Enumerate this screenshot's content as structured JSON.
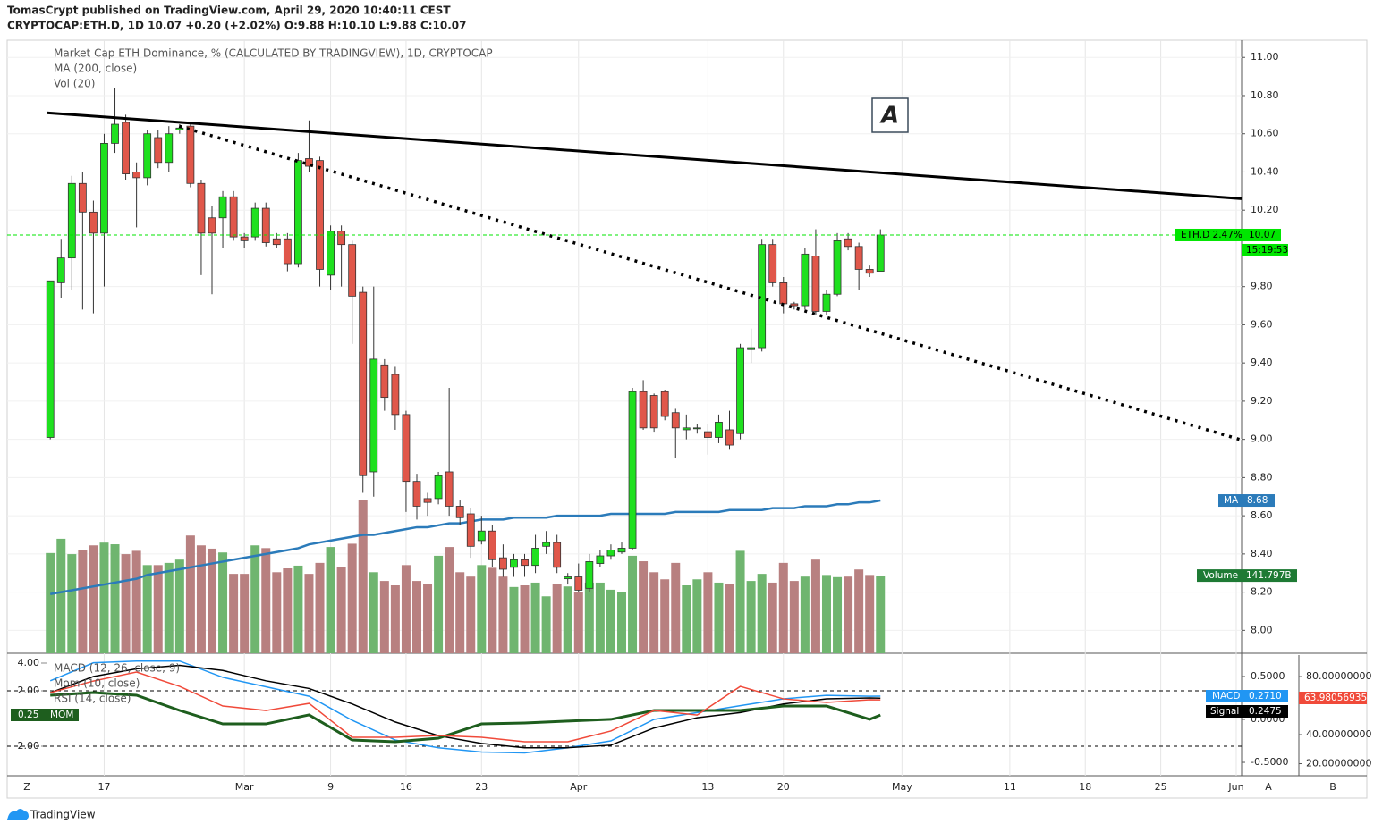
{
  "header": {
    "publisher": "TomasCrypt published on TradingView.com, April 29, 2020 10:40:11 CEST",
    "symbol_line": "CRYPTOCAP:ETH.D, 1D  10.07  +0.20 (+2.02%)  O:9.88  H:10.10  L:9.88  C:10.07"
  },
  "footer": {
    "brand": "TradingView",
    "corner_left": "Z",
    "button_a": "A",
    "button_b": "B"
  },
  "chart_data": [
    {
      "type": "candlestick",
      "title": "Market Cap ETH Dominance, % (CALCULATED BY TRADINGVIEW), 1D, CRYPTOCAP",
      "legend": [
        "MA (200, close)",
        "Vol (20)"
      ],
      "annotation": "A",
      "xlim": [
        -4,
        110.5
      ],
      "xticks": [
        {
          "value": 5,
          "label": "17"
        },
        {
          "value": 18,
          "label": "Mar"
        },
        {
          "value": 26,
          "label": "9"
        },
        {
          "value": 33,
          "label": "16"
        },
        {
          "value": 40,
          "label": "23"
        },
        {
          "value": 49,
          "label": "Apr"
        },
        {
          "value": 61,
          "label": "13"
        },
        {
          "value": 68,
          "label": "20"
        },
        {
          "value": 79,
          "label": "May"
        },
        {
          "value": 89,
          "label": "11"
        },
        {
          "value": 96,
          "label": "18"
        },
        {
          "value": 103,
          "label": "25"
        },
        {
          "value": 110,
          "label": "Jun"
        }
      ],
      "ylim": [
        7.88,
        11.09
      ],
      "yticks": [
        {
          "value": 11,
          "label": "11.00"
        },
        {
          "value": 10.8,
          "label": "10.80"
        },
        {
          "value": 10.6,
          "label": "10.60"
        },
        {
          "value": 10.4,
          "label": "10.40"
        },
        {
          "value": 10.2,
          "label": "10.20"
        },
        {
          "value": 9.8,
          "label": "9.80"
        },
        {
          "value": 9.6,
          "label": "9.60"
        },
        {
          "value": 9.4,
          "label": "9.40"
        },
        {
          "value": 9.2,
          "label": "9.20"
        },
        {
          "value": 9,
          "label": "9.00"
        },
        {
          "value": 8.8,
          "label": "8.80"
        },
        {
          "value": 8.6,
          "label": "8.60"
        },
        {
          "value": 8.4,
          "label": "8.40"
        },
        {
          "value": 8.2,
          "label": "8.20"
        },
        {
          "value": 8,
          "label": "8.00"
        }
      ],
      "grid": true,
      "up_color": "#1fe01f",
      "down_color": "#e0574a",
      "open": [
        9.01,
        9.82,
        9.95,
        10.34,
        10.19,
        10.08,
        10.55,
        10.66,
        10.4,
        10.37,
        10.58,
        10.45,
        10.62,
        10.64,
        10.34,
        10.16,
        10.16,
        10.27,
        10.06,
        10.06,
        10.21,
        10.05,
        10.05,
        9.92,
        10.47,
        10.46,
        9.86,
        10.09,
        10.02,
        9.77,
        8.83,
        9.39,
        9.34,
        9.13,
        8.78,
        8.69,
        8.69,
        8.83,
        8.65,
        8.61,
        8.47,
        8.52,
        8.38,
        8.33,
        8.37,
        8.34,
        8.44,
        8.46,
        8.27,
        8.28,
        8.22,
        8.35,
        8.39,
        8.41,
        8.43,
        9.25,
        9.23,
        9.25,
        9.14,
        9.05,
        9.06,
        9.04,
        9.01,
        9.05,
        9.03,
        9.47,
        9.48,
        10.02,
        9.82,
        9.71,
        9.7,
        9.96,
        9.67,
        9.76,
        10.05,
        10.01,
        9.89,
        9.88
      ],
      "high": [
        9.83,
        10.05,
        10.38,
        10.4,
        10.25,
        10.6,
        10.84,
        10.7,
        10.45,
        10.62,
        10.62,
        10.64,
        10.65,
        10.65,
        10.36,
        10.22,
        10.3,
        10.3,
        10.08,
        10.24,
        10.24,
        10.08,
        10.08,
        10.5,
        10.67,
        10.48,
        10.12,
        10.12,
        10.04,
        9.8,
        9.8,
        9.42,
        9.38,
        9.15,
        8.82,
        8.72,
        8.83,
        9.27,
        8.68,
        8.64,
        8.6,
        8.55,
        8.45,
        8.4,
        8.4,
        8.5,
        8.52,
        8.5,
        8.3,
        8.35,
        8.4,
        8.42,
        8.45,
        8.46,
        9.27,
        9.31,
        9.24,
        9.26,
        9.16,
        9.13,
        9.08,
        9.08,
        9.13,
        9.15,
        9.5,
        9.58,
        10.05,
        10.05,
        9.85,
        9.72,
        10.0,
        10.1,
        9.78,
        10.08,
        10.08,
        10.03,
        9.91,
        10.1
      ],
      "low": [
        9.0,
        9.74,
        9.78,
        9.68,
        9.66,
        9.8,
        10.5,
        10.36,
        10.11,
        10.33,
        10.42,
        10.4,
        10.6,
        10.32,
        9.86,
        9.76,
        10.0,
        10.04,
        10.0,
        10.04,
        10.01,
        10.0,
        9.88,
        9.9,
        10.4,
        9.8,
        9.78,
        9.8,
        9.5,
        8.72,
        8.7,
        9.15,
        9.05,
        8.62,
        8.58,
        8.6,
        8.66,
        8.6,
        8.55,
        8.38,
        8.45,
        8.33,
        8.28,
        8.28,
        8.28,
        8.3,
        8.4,
        8.3,
        8.24,
        8.2,
        8.2,
        8.33,
        8.37,
        8.4,
        8.42,
        9.05,
        9.04,
        9.1,
        8.9,
        9.0,
        9.03,
        8.92,
        8.98,
        8.95,
        9.0,
        9.4,
        9.46,
        9.8,
        9.66,
        9.68,
        9.68,
        9.65,
        9.65,
        9.75,
        9.99,
        9.78,
        9.85,
        9.88
      ],
      "close": [
        9.83,
        9.95,
        10.34,
        10.19,
        10.08,
        10.55,
        10.65,
        10.39,
        10.37,
        10.6,
        10.45,
        10.6,
        10.63,
        10.34,
        10.08,
        10.08,
        10.27,
        10.06,
        10.04,
        10.21,
        10.03,
        10.02,
        9.92,
        10.46,
        10.43,
        9.89,
        10.09,
        10.02,
        9.75,
        8.81,
        9.42,
        9.22,
        9.13,
        8.78,
        8.65,
        8.67,
        8.81,
        8.65,
        8.59,
        8.44,
        8.52,
        8.37,
        8.32,
        8.37,
        8.34,
        8.43,
        8.46,
        8.33,
        8.28,
        8.21,
        8.36,
        8.39,
        8.42,
        8.43,
        9.25,
        9.06,
        9.06,
        9.12,
        9.06,
        9.06,
        9.06,
        9.01,
        9.09,
        8.97,
        9.48,
        9.48,
        10.02,
        9.82,
        9.71,
        9.7,
        9.97,
        9.67,
        9.76,
        10.04,
        10.01,
        9.89,
        9.87,
        10.07
      ],
      "volume": {
        "name": "Volume",
        "up_color": "#6fb56f",
        "down_color": "#b88080",
        "value_label": "141.797B",
        "label_color": "#1e7a34",
        "values": [
          183,
          209,
          181,
          189,
          197,
          202,
          199,
          181,
          187,
          161,
          161,
          165,
          171,
          215,
          197,
          191,
          184,
          145,
          145,
          197,
          192,
          148,
          155,
          160,
          145,
          165,
          194,
          158,
          200,
          279,
          148,
          132,
          124,
          161,
          132,
          127,
          178,
          194,
          148,
          140,
          161,
          156,
          140,
          121,
          124,
          129,
          104,
          126,
          122,
          112,
          129,
          129,
          116,
          111,
          178,
          168,
          148,
          135,
          165,
          124,
          135,
          148,
          129,
          127,
          187,
          132,
          145,
          129,
          165,
          132,
          140,
          171,
          143,
          139,
          140,
          153,
          143,
          141.797
        ]
      },
      "ma": {
        "name": "MA",
        "color": "#2b7bba",
        "values": [
          8.19,
          8.2,
          8.21,
          8.22,
          8.23,
          8.24,
          8.25,
          8.26,
          8.27,
          8.29,
          8.3,
          8.31,
          8.32,
          8.33,
          8.34,
          8.35,
          8.36,
          8.37,
          8.38,
          8.39,
          8.4,
          8.41,
          8.42,
          8.43,
          8.45,
          8.46,
          8.47,
          8.48,
          8.49,
          8.5,
          8.5,
          8.51,
          8.52,
          8.53,
          8.54,
          8.54,
          8.55,
          8.56,
          8.56,
          8.57,
          8.58,
          8.58,
          8.58,
          8.59,
          8.59,
          8.59,
          8.59,
          8.6,
          8.6,
          8.6,
          8.6,
          8.6,
          8.61,
          8.61,
          8.61,
          8.61,
          8.61,
          8.61,
          8.62,
          8.62,
          8.62,
          8.62,
          8.62,
          8.63,
          8.63,
          8.63,
          8.63,
          8.64,
          8.64,
          8.64,
          8.65,
          8.65,
          8.65,
          8.66,
          8.66,
          8.67,
          8.67,
          8.68
        ]
      },
      "price_line": {
        "label": "ETH.D 2.47%",
        "countdown": "15:19:53",
        "color": "#00e600"
      },
      "trendlines": [
        {
          "style": "solid",
          "x": [
            -0.33,
            110.5
          ],
          "y": [
            10.71,
            10.26
          ]
        },
        {
          "style": "dotted",
          "x": [
            11.95,
            110.3
          ],
          "y": [
            10.64,
            9.0
          ]
        }
      ]
    },
    {
      "type": "line",
      "legend": [
        "MACD (12, 26, close, 9)",
        "Mom (10, close)",
        "RSI (14, close)"
      ],
      "xlim": [
        -4,
        110.5
      ],
      "ylim": [
        -4.13,
        4.58
      ],
      "yticks": [
        {
          "value": 4,
          "label": "4.00"
        },
        {
          "value": 2,
          "label": "2.00"
        },
        {
          "value": -2,
          "label": "-2.00"
        }
      ],
      "y2lim": [
        -0.656,
        0.75
      ],
      "y2ticks": [
        {
          "value": 0.5,
          "label": "0.5000"
        },
        {
          "value": 0,
          "label": "0.0000"
        },
        {
          "value": -0.5,
          "label": "-0.5000"
        }
      ],
      "y3lim": [
        11.7,
        94.8
      ],
      "y3ticks": [
        {
          "value": 80,
          "label": "80.00000000"
        },
        {
          "value": 40,
          "label": "40.00000000"
        },
        {
          "value": 20,
          "label": "20.00000000"
        }
      ],
      "reference_lines": [
        2,
        -2
      ],
      "series": [
        {
          "name": "MACD",
          "color": "#2196f3",
          "axis": "y2",
          "last_value_label": "0.2710",
          "x": [
            0,
            4,
            8,
            12,
            16,
            20,
            24,
            28,
            32,
            36,
            40,
            44,
            48,
            52,
            56,
            60,
            64,
            68,
            72,
            76,
            77
          ],
          "values": [
            0.45,
            0.66,
            0.68,
            0.68,
            0.49,
            0.38,
            0.27,
            -0.01,
            -0.24,
            -0.33,
            -0.38,
            -0.39,
            -0.33,
            -0.25,
            0.0,
            0.08,
            0.16,
            0.24,
            0.28,
            0.27,
            0.271
          ]
        },
        {
          "name": "Signal",
          "color": "#000000",
          "axis": "y2",
          "x": [
            0,
            4,
            8,
            12,
            16,
            20,
            24,
            28,
            32,
            36,
            40,
            44,
            48,
            52,
            56,
            60,
            64,
            68,
            72,
            76,
            77
          ],
          "values": [
            0.31,
            0.5,
            0.59,
            0.63,
            0.57,
            0.45,
            0.36,
            0.18,
            -0.03,
            -0.19,
            -0.28,
            -0.33,
            -0.33,
            -0.3,
            -0.1,
            0.02,
            0.08,
            0.18,
            0.24,
            0.25,
            0.2475
          ]
        },
        {
          "name": "MOM",
          "color": "#1e5e1e",
          "axis": "y",
          "x": [
            0,
            4,
            8,
            12,
            16,
            20,
            24,
            28,
            32,
            36,
            40,
            44,
            48,
            52,
            56,
            60,
            64,
            68,
            72,
            76,
            77
          ],
          "values": [
            1.68,
            1.87,
            1.68,
            0.58,
            -0.39,
            -0.39,
            0.26,
            -1.55,
            -1.68,
            -1.42,
            -0.39,
            -0.32,
            -0.19,
            -0.06,
            0.58,
            0.58,
            0.58,
            0.9,
            0.9,
            -0.06,
            0.25
          ]
        },
        {
          "color": "#f04a3a",
          "axis": "y3",
          "x": [
            0,
            4,
            8,
            12,
            16,
            20,
            24,
            28,
            32,
            36,
            40,
            44,
            48,
            52,
            56,
            60,
            64,
            68,
            72,
            76,
            77
          ],
          "values": [
            68.9,
            76.9,
            83.1,
            73.2,
            59.7,
            56.6,
            61.5,
            38.2,
            38.2,
            39.4,
            38.2,
            35.1,
            35.1,
            42.5,
            56.6,
            53.5,
            73.2,
            64.6,
            62.2,
            64.0,
            63.98056935
          ]
        }
      ]
    }
  ]
}
